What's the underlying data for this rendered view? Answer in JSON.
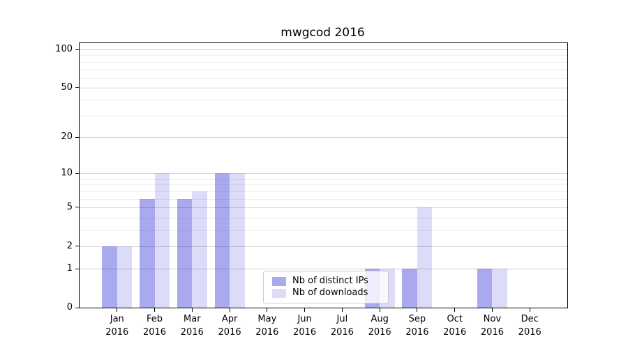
{
  "figure": {
    "title": "mwgcod 2016"
  },
  "legend": {
    "items": [
      {
        "label": "Nb of distinct IPs"
      },
      {
        "label": "Nb of downloads"
      }
    ]
  },
  "chart_data": {
    "type": "bar",
    "title": "mwgcod 2016",
    "categories": [
      "Jan 2016",
      "Feb 2016",
      "Mar 2016",
      "Apr 2016",
      "May 2016",
      "Jun 2016",
      "Jul 2016",
      "Aug 2016",
      "Sep 2016",
      "Oct 2016",
      "Nov 2016",
      "Dec 2016"
    ],
    "months": [
      "Jan",
      "Feb",
      "Mar",
      "Apr",
      "May",
      "Jun",
      "Jul",
      "Aug",
      "Sep",
      "Oct",
      "Nov",
      "Dec"
    ],
    "year": "2016",
    "series": [
      {
        "name": "Nb of distinct IPs",
        "color": "#a9a9f0",
        "values": [
          2,
          6,
          6,
          10,
          0,
          0,
          0,
          1,
          1,
          0,
          1,
          0
        ]
      },
      {
        "name": "Nb of downloads",
        "color": "#dcdcf8",
        "values": [
          2,
          10,
          7,
          10,
          0,
          0,
          0,
          1,
          5,
          0,
          1,
          0
        ]
      }
    ],
    "xlabel": "",
    "ylabel": "",
    "yscale": "log1p",
    "ylim": [
      0,
      100
    ],
    "y_ticks": [
      0,
      1,
      2,
      5,
      10,
      20,
      50,
      100
    ],
    "major_gridlines": [
      1,
      2,
      5,
      10,
      20,
      50,
      100
    ],
    "minor_gridlines": [
      3,
      4,
      6,
      7,
      8,
      9,
      30,
      40,
      60,
      70,
      80,
      90
    ],
    "grid": true,
    "legend_position": "lower center inside"
  }
}
